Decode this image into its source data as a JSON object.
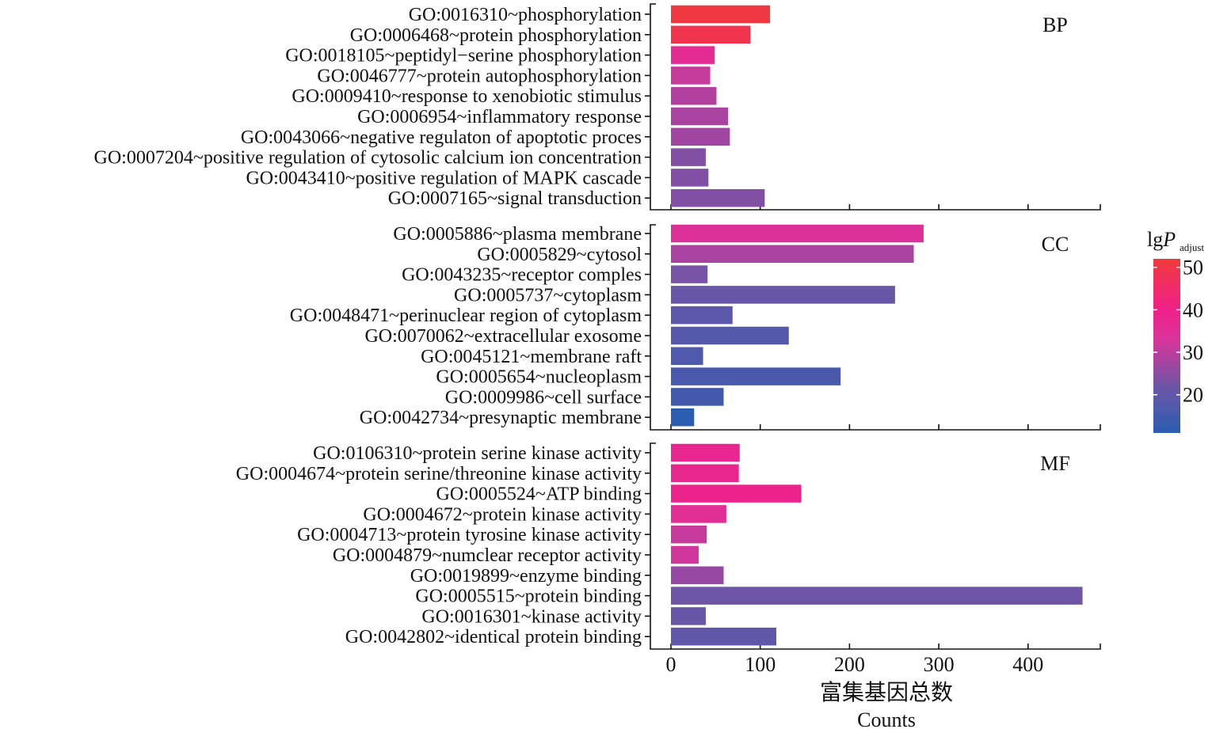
{
  "chart_data": {
    "type": "bar",
    "orientation": "horizontal",
    "xlabel_cn": "富集基因总数",
    "xlabel_en": "Counts",
    "xlim": [
      -12,
      482
    ],
    "xticks": [
      0,
      100,
      200,
      300,
      400
    ],
    "color_scale": {
      "title_main": "lg",
      "title_italic": "P",
      "title_sub": "adjust",
      "range": [
        11,
        52
      ],
      "ticks": [
        20,
        30,
        40,
        50
      ],
      "stops": [
        {
          "v": 11,
          "color": "#2a5db0"
        },
        {
          "v": 22,
          "color": "#6e55a6"
        },
        {
          "v": 33,
          "color": "#d9349a"
        },
        {
          "v": 40,
          "color": "#f0208a"
        },
        {
          "v": 52,
          "color": "#f03a3a"
        }
      ]
    },
    "panels": [
      {
        "name": "BP",
        "terms": [
          {
            "label": "GO:0016310~phosphorylation",
            "count": 111,
            "lgp": 51
          },
          {
            "label": "GO:0006468~protein phosphorylation",
            "count": 89,
            "lgp": 49
          },
          {
            "label": "GO:0018105~peptidyl−serine phosphorylation",
            "count": 49,
            "lgp": 36
          },
          {
            "label": "GO:0046777~protein autophosphorylation",
            "count": 44,
            "lgp": 31
          },
          {
            "label": "GO:0009410~response to xenobiotic stimulus",
            "count": 51,
            "lgp": 29
          },
          {
            "label": "GO:0006954~inflammatory response",
            "count": 64,
            "lgp": 28
          },
          {
            "label": "GO:0043066~negative regulaton of apoptotic proces",
            "count": 66,
            "lgp": 27
          },
          {
            "label": "GO:0007204~positive regulation of cytosolic calcium ion concentration",
            "count": 39,
            "lgp": 24
          },
          {
            "label": "GO:0043410~positive regulation of MAPK cascade",
            "count": 42,
            "lgp": 24
          },
          {
            "label": "GO:0007165~signal transduction",
            "count": 105,
            "lgp": 24
          }
        ]
      },
      {
        "name": "CC",
        "terms": [
          {
            "label": "GO:0005886~plasma membrane",
            "count": 283,
            "lgp": 34
          },
          {
            "label": "GO:0005829~cytosol",
            "count": 272,
            "lgp": 28
          },
          {
            "label": "GO:0043235~receptor comples",
            "count": 41,
            "lgp": 23
          },
          {
            "label": "GO:0005737~cytoplasm",
            "count": 251,
            "lgp": 21
          },
          {
            "label": "GO:0048471~perinuclear region of cytoplasm",
            "count": 69,
            "lgp": 19
          },
          {
            "label": "GO:0070062~extracellular exosome",
            "count": 132,
            "lgp": 18
          },
          {
            "label": "GO:0045121~membrane raft",
            "count": 36,
            "lgp": 17
          },
          {
            "label": "GO:0005654~nucleoplasm",
            "count": 190,
            "lgp": 16
          },
          {
            "label": "GO:0009986~cell surface",
            "count": 59,
            "lgp": 15
          },
          {
            "label": "GO:0042734~presynaptic membrane",
            "count": 26,
            "lgp": 11
          }
        ]
      },
      {
        "name": "MF",
        "terms": [
          {
            "label": "GO:0106310~protein serine kinase activity",
            "count": 77,
            "lgp": 38
          },
          {
            "label": "GO:0004674~protein serine/threonine kinase activity",
            "count": 76,
            "lgp": 38
          },
          {
            "label": "GO:0005524~ATP binding",
            "count": 146,
            "lgp": 39
          },
          {
            "label": "GO:0004672~protein kinase activity",
            "count": 62,
            "lgp": 35
          },
          {
            "label": "GO:0004713~protein tyrosine kinase activity",
            "count": 40,
            "lgp": 31
          },
          {
            "label": "GO:0004879~numclear receptor activity",
            "count": 31,
            "lgp": 32
          },
          {
            "label": "GO:0019899~enzyme binding",
            "count": 59,
            "lgp": 26
          },
          {
            "label": "GO:0005515~protein binding",
            "count": 461,
            "lgp": 22
          },
          {
            "label": "GO:0016301~kinase activity",
            "count": 39,
            "lgp": 21
          },
          {
            "label": "GO:0042802~identical protein binding",
            "count": 118,
            "lgp": 20
          }
        ]
      }
    ]
  }
}
